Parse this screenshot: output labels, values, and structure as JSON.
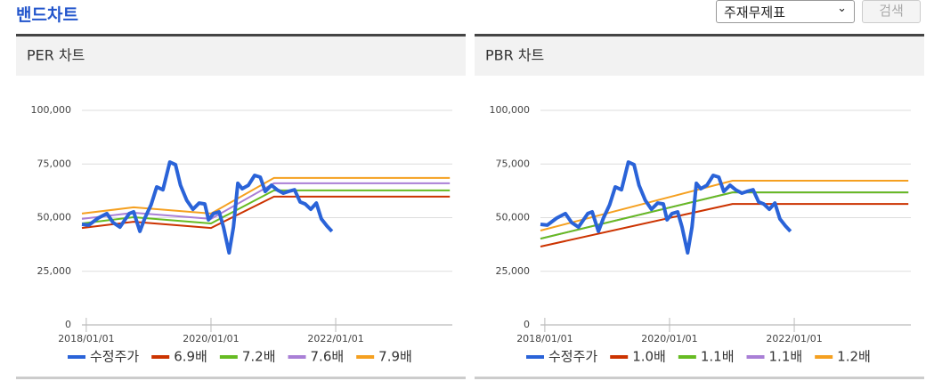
{
  "header": {
    "title": "밴드차트",
    "select": "주재무제표",
    "button": "검색"
  },
  "chart_data": [
    {
      "type": "line",
      "title": "PER 차트",
      "xlim": [
        2017.93,
        2023.87
      ],
      "ylim": [
        0,
        100000
      ],
      "xticks": [
        {
          "value": 2018,
          "label": "2018/01/01"
        },
        {
          "value": 2020,
          "label": "2020/01/01"
        },
        {
          "value": 2022,
          "label": "2022/01/01"
        }
      ],
      "yticks": [
        0,
        {
          "value": 25000,
          "label": "25,000"
        },
        {
          "value": 50000,
          "label": "50,000"
        },
        {
          "value": 75000,
          "label": "75,000"
        },
        {
          "value": 100000,
          "label": "100,000"
        }
      ],
      "grid": true,
      "series": [
        {
          "name": "수정주가",
          "color": "#2a63d8",
          "x": [
            2017.93,
            2018.04,
            2018.19,
            2018.33,
            2018.43,
            2018.54,
            2018.69,
            2018.76,
            2018.86,
            2018.94,
            2019.04,
            2019.13,
            2019.23,
            2019.34,
            2019.43,
            2019.51,
            2019.61,
            2019.71,
            2019.81,
            2019.9,
            2019.96,
            2020.04,
            2020.13,
            2020.2,
            2020.29,
            2020.36,
            2020.43,
            2020.5,
            2020.6,
            2020.7,
            2020.79,
            2020.87,
            2020.97,
            2021.06,
            2021.16,
            2021.24,
            2021.34,
            2021.43,
            2021.51,
            2021.6,
            2021.69,
            2021.77,
            2021.86,
            2021.94
          ],
          "values": [
            46900,
            46500,
            49800,
            51900,
            47700,
            45600,
            51900,
            52700,
            43600,
            49800,
            56000,
            64300,
            63000,
            75900,
            74700,
            65100,
            58100,
            53900,
            56800,
            56400,
            49000,
            51900,
            52700,
            45600,
            33600,
            45600,
            66000,
            63500,
            65100,
            69700,
            68900,
            62200,
            65100,
            63000,
            61400,
            62200,
            63000,
            57300,
            56400,
            53900,
            56800,
            49400,
            46100,
            43600
          ]
        },
        {
          "name": "6.9배",
          "color": "#cc3300",
          "x": [
            2017.93,
            2018.76,
            2020.0,
            2021.01,
            2023.83
          ],
          "values": [
            45200,
            48100,
            45200,
            59800,
            59800
          ]
        },
        {
          "name": "7.2배",
          "color": "#66bb22",
          "x": [
            2017.93,
            2018.76,
            2020.0,
            2021.01,
            2023.83
          ],
          "values": [
            47300,
            50200,
            47300,
            62700,
            62700
          ]
        },
        {
          "name": "7.6배",
          "color": "#a97fd6",
          "x": [
            2017.93,
            2018.76,
            2020.0,
            2021.01,
            2023.83
          ],
          "values": [
            49400,
            52300,
            49400,
            66000,
            66000
          ]
        },
        {
          "name": "7.9배",
          "color": "#f5a020",
          "x": [
            2017.93,
            2018.76,
            2020.0,
            2021.01,
            2023.83
          ],
          "values": [
            51900,
            54800,
            51900,
            68500,
            68500
          ]
        }
      ]
    },
    {
      "type": "line",
      "title": "PBR 차트",
      "xlim": [
        2017.93,
        2023.87
      ],
      "ylim": [
        0,
        100000
      ],
      "xticks": [
        {
          "value": 2018,
          "label": "2018/01/01"
        },
        {
          "value": 2020,
          "label": "2020/01/01"
        },
        {
          "value": 2022,
          "label": "2022/01/01"
        }
      ],
      "yticks": [
        0,
        {
          "value": 25000,
          "label": "25,000"
        },
        {
          "value": 50000,
          "label": "50,000"
        },
        {
          "value": 75000,
          "label": "75,000"
        },
        {
          "value": 100000,
          "label": "100,000"
        }
      ],
      "grid": true,
      "series": [
        {
          "name": "수정주가",
          "color": "#2a63d8",
          "x": [
            2017.93,
            2018.04,
            2018.19,
            2018.33,
            2018.43,
            2018.54,
            2018.69,
            2018.76,
            2018.86,
            2018.94,
            2019.04,
            2019.13,
            2019.23,
            2019.34,
            2019.43,
            2019.51,
            2019.61,
            2019.71,
            2019.81,
            2019.9,
            2019.96,
            2020.04,
            2020.13,
            2020.2,
            2020.29,
            2020.36,
            2020.43,
            2020.5,
            2020.6,
            2020.7,
            2020.79,
            2020.87,
            2020.97,
            2021.06,
            2021.16,
            2021.24,
            2021.34,
            2021.43,
            2021.51,
            2021.6,
            2021.69,
            2021.77,
            2021.86,
            2021.94
          ],
          "values": [
            46900,
            46500,
            49800,
            51900,
            47700,
            45600,
            51900,
            52700,
            43600,
            49800,
            56000,
            64300,
            63000,
            75900,
            74700,
            65100,
            58100,
            53900,
            56800,
            56400,
            49000,
            51900,
            52700,
            45600,
            33600,
            45600,
            66000,
            63500,
            65100,
            69700,
            68900,
            62200,
            65100,
            63000,
            61400,
            62200,
            63000,
            57300,
            56400,
            53900,
            56800,
            49400,
            46100,
            43600
          ]
        },
        {
          "name": "1.0배",
          "color": "#cc3300",
          "x": [
            2017.93,
            2021.01,
            2023.83
          ],
          "values": [
            36500,
            56400,
            56400
          ]
        },
        {
          "name": "1.1배",
          "color": "#66bb22",
          "x": [
            2017.93,
            2021.01,
            2023.83
          ],
          "values": [
            40200,
            61800,
            61800
          ]
        },
        {
          "name": "1.1배",
          "color": "#a97fd6",
          "x": [
            2017.93,
            2021.01,
            2023.83
          ],
          "values": [
            40200,
            61800,
            61800
          ]
        },
        {
          "name": "1.2배",
          "color": "#f5a020",
          "x": [
            2017.93,
            2021.01,
            2023.83
          ],
          "values": [
            44000,
            67200,
            67200
          ]
        }
      ]
    }
  ]
}
